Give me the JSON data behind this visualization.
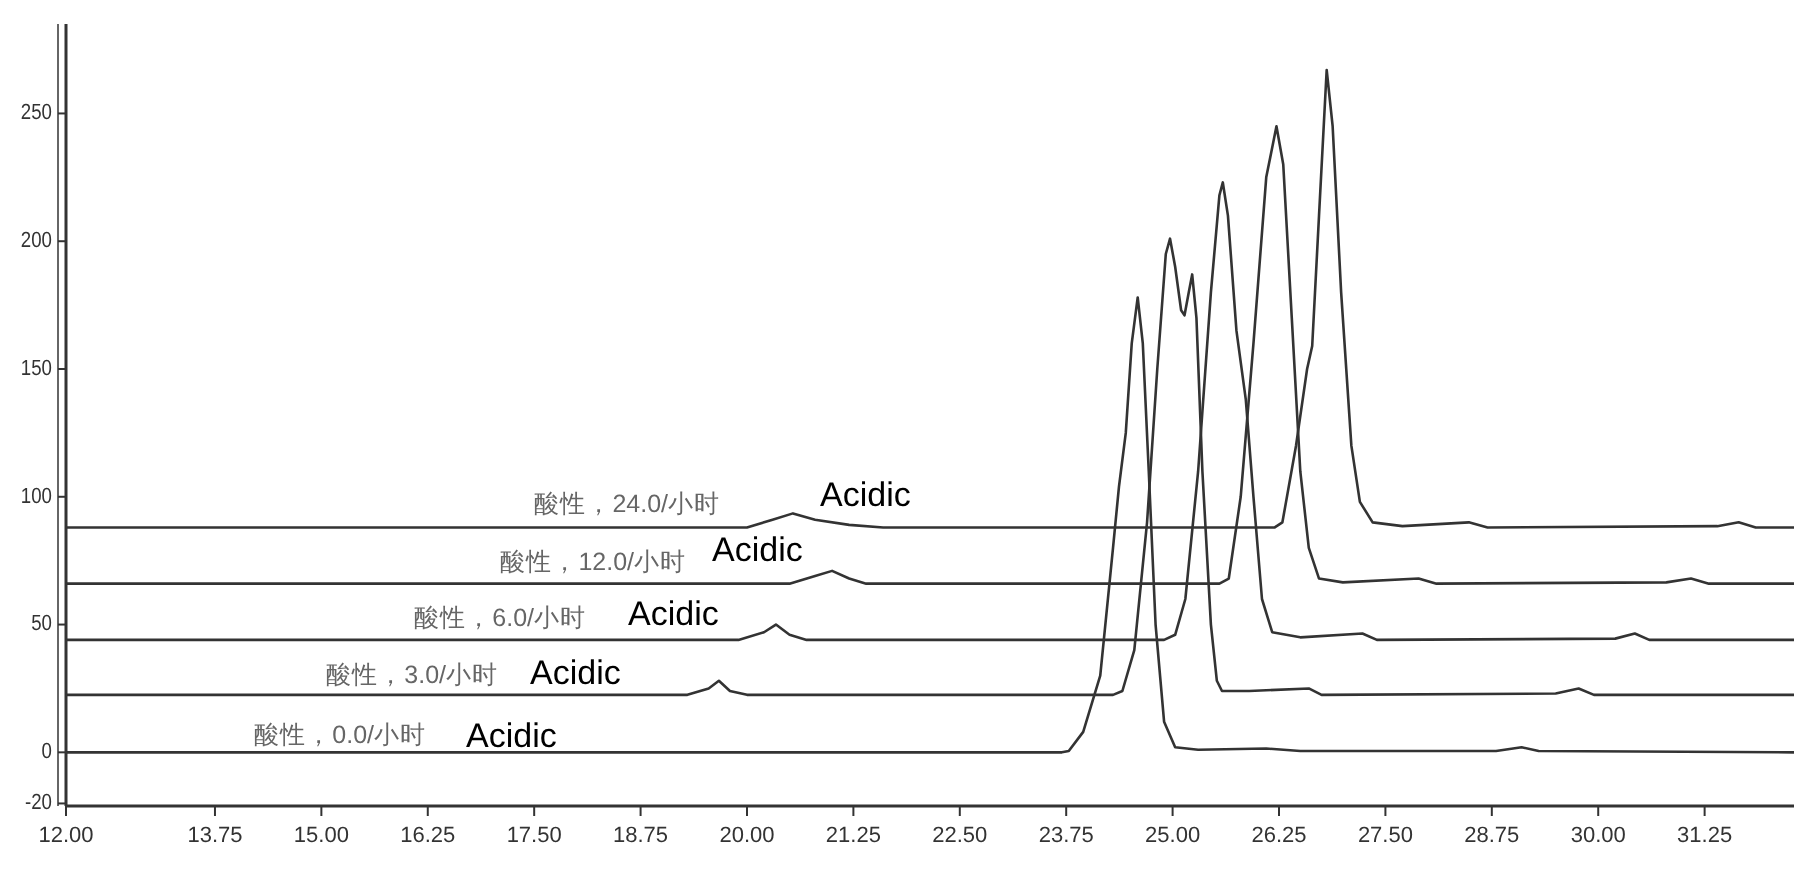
{
  "chart_data": {
    "type": "line",
    "xlim": [
      12,
      32.3
    ],
    "ylim": [
      -21,
      285
    ],
    "xticks": [
      {
        "value": 12,
        "label": "12.00"
      },
      {
        "value": 13.75,
        "label": "13.75"
      },
      {
        "value": 15,
        "label": "15.00"
      },
      {
        "value": 16.25,
        "label": "16.25"
      },
      {
        "value": 17.5,
        "label": "17.50"
      },
      {
        "value": 18.75,
        "label": "18.75"
      },
      {
        "value": 20,
        "label": "20.00"
      },
      {
        "value": 21.25,
        "label": "21.25"
      },
      {
        "value": 22.5,
        "label": "22.50"
      },
      {
        "value": 23.75,
        "label": "23.75"
      },
      {
        "value": 25,
        "label": "25.00"
      },
      {
        "value": 26.25,
        "label": "26.25"
      },
      {
        "value": 27.5,
        "label": "27.50"
      },
      {
        "value": 28.75,
        "label": "28.75"
      },
      {
        "value": 30,
        "label": "30.00"
      },
      {
        "value": 31.25,
        "label": "31.25"
      }
    ],
    "yticks": [
      -20,
      0,
      50,
      100,
      150,
      200,
      250
    ],
    "grid": false,
    "marker": "none",
    "line_style": "solid",
    "series": [
      {
        "name": "酸性，0.0/小时",
        "color": "#333333",
        "x": [
          12,
          19,
          23.7,
          23.78,
          23.95,
          24.15,
          24.3,
          24.37,
          24.45,
          24.52,
          24.59,
          24.65,
          24.72,
          24.8,
          24.9,
          25.03,
          25.3,
          26.1,
          26.5,
          28.8,
          29.1,
          29.3,
          32.3
        ],
        "values": [
          0,
          0,
          0,
          0.5,
          8,
          30,
          80,
          104,
          125,
          160,
          178,
          160,
          110,
          50,
          12,
          2,
          1,
          1.5,
          0.5,
          0.5,
          2,
          0.5,
          0
        ]
      },
      {
        "name": "酸性，3.0/小时",
        "color": "#333333",
        "x": [
          12,
          19.3,
          19.55,
          19.67,
          19.8,
          20,
          24.3,
          24.41,
          24.55,
          24.7,
          24.82,
          24.92,
          24.97,
          25.03,
          25.1,
          25.14,
          25.19,
          25.23,
          25.28,
          25.35,
          25.45,
          25.52,
          25.58,
          25.9,
          26.6,
          26.75,
          29.5,
          29.77,
          29.95,
          32.3
        ],
        "values": [
          22.5,
          22.5,
          25,
          28,
          24,
          22.5,
          22.5,
          24,
          40,
          90,
          150,
          195,
          201,
          190,
          173,
          171,
          180,
          187,
          170,
          110,
          50,
          28,
          24,
          24,
          25,
          22.5,
          23,
          25,
          22.5,
          22.5
        ]
      },
      {
        "name": "酸性，6.0/小时",
        "color": "#333333",
        "x": [
          12,
          19.9,
          20.2,
          20.34,
          20.5,
          20.7,
          24.9,
          25.03,
          25.15,
          25.3,
          25.45,
          25.55,
          25.59,
          25.65,
          25.75,
          25.86,
          25.95,
          26.05,
          26.17,
          26.5,
          27.23,
          27.4,
          30.2,
          30.43,
          30.6,
          32.3
        ],
        "values": [
          44,
          44,
          47,
          50,
          46,
          44,
          44,
          46,
          60,
          110,
          180,
          218,
          223,
          210,
          165,
          138,
          100,
          60,
          47,
          45,
          46.5,
          44,
          44.5,
          46.5,
          44,
          44
        ]
      },
      {
        "name": "酸性，12.0/小时",
        "color": "#333333",
        "x": [
          12,
          20.5,
          20.8,
          21,
          21.2,
          21.4,
          25.55,
          25.66,
          25.8,
          25.95,
          26.1,
          26.22,
          26.3,
          26.4,
          26.5,
          26.6,
          26.72,
          27,
          27.89,
          28.1,
          30.8,
          31.09,
          31.3,
          32.3
        ],
        "values": [
          66,
          66,
          69,
          71,
          68,
          66,
          66,
          68,
          100,
          160,
          225,
          245,
          230,
          170,
          110,
          80,
          68,
          66.5,
          68,
          66,
          66.5,
          68,
          66,
          66
        ]
      },
      {
        "name": "酸性，24.0/小时",
        "color": "#333333",
        "x": [
          12,
          20,
          20.3,
          20.54,
          20.8,
          21.2,
          21.6,
          26.2,
          26.29,
          26.45,
          26.58,
          26.64,
          26.72,
          26.81,
          26.88,
          26.98,
          27.1,
          27.2,
          27.35,
          27.7,
          28.48,
          28.7,
          31.4,
          31.65,
          31.85,
          32.3
        ],
        "values": [
          88,
          88,
          91,
          93.5,
          91,
          89,
          88,
          88,
          90,
          120,
          150,
          159,
          210,
          267,
          245,
          180,
          120,
          98,
          90,
          88.5,
          90,
          88,
          88.5,
          90,
          88,
          88
        ]
      }
    ],
    "annotations": [
      "Acidic",
      "Acidic",
      "Acidic",
      "Acidic",
      "Acidic"
    ]
  }
}
